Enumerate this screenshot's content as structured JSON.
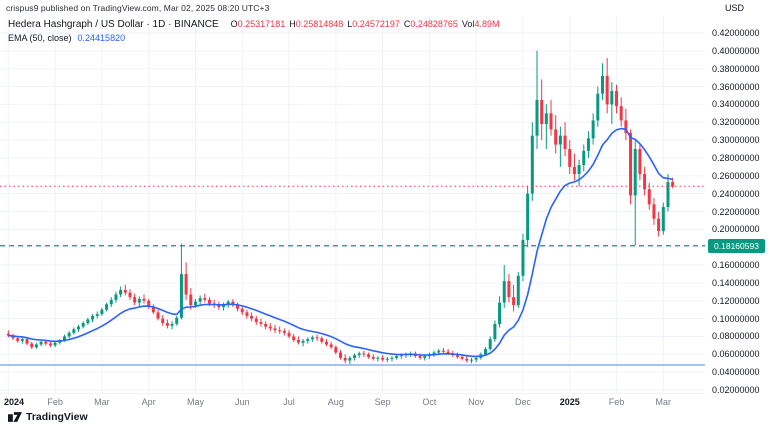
{
  "publish_bar": {
    "text": "crispus9 published on TradingView.com, Mar 02, 2025 08:20 UTC+3"
  },
  "legend": {
    "symbol": "Hedera Hashgraph / US Dollar · 1D · BINANCE",
    "ohlc": [
      {
        "label": "O",
        "value": "0.25317181"
      },
      {
        "label": "H",
        "value": "0.25814848"
      },
      {
        "label": "L",
        "value": "0.24572197"
      },
      {
        "label": "C",
        "value": "0.24828765"
      },
      {
        "label": "Vol",
        "value": "4.89M"
      }
    ],
    "ema": {
      "label": "EMA (50, close)",
      "value": "0.24415820"
    }
  },
  "right_axis": {
    "currency": "USD",
    "ticks": [
      "0.42000000",
      "0.40000000",
      "0.38000000",
      "0.36000000",
      "0.34000000",
      "0.32000000",
      "0.30000000",
      "0.28000000",
      "0.26000000",
      "0.24000000",
      "0.22000000",
      "0.20000000",
      "0.18000000",
      "0.16000000",
      "0.14000000",
      "0.12000000",
      "0.10000000",
      "0.08000000",
      "0.06000000",
      "0.04000000",
      "0.02000000"
    ],
    "level_badge": {
      "value": "0.18160593",
      "color": "#089981"
    }
  },
  "logo": {
    "text": "TradingView"
  },
  "colors": {
    "up": "#089981",
    "down": "#f23645",
    "ema_line": "#2962ff",
    "level_dashed": "#089981",
    "last_price": "#f23645",
    "support_line": "#4a86f7",
    "grid": "#f0f3fa",
    "text_dark": "#131722",
    "text_gray": "#787b86"
  },
  "chart_data": {
    "type": "candlestick",
    "title": "Hedera Hashgraph / US Dollar, 1D, BINANCE",
    "interval": "1D",
    "y_axis": {
      "min": 0.02,
      "max": 0.42,
      "tick_step": 0.02
    },
    "x_labels": [
      {
        "text": "2024",
        "i": 0,
        "major": true
      },
      {
        "text": "Feb",
        "i": 10
      },
      {
        "text": "Mar",
        "i": 20
      },
      {
        "text": "Apr",
        "i": 30
      },
      {
        "text": "May",
        "i": 40
      },
      {
        "text": "Jun",
        "i": 50
      },
      {
        "text": "Jul",
        "i": 60
      },
      {
        "text": "Aug",
        "i": 70
      },
      {
        "text": "Sep",
        "i": 80
      },
      {
        "text": "Oct",
        "i": 90
      },
      {
        "text": "Nov",
        "i": 100
      },
      {
        "text": "Dec",
        "i": 110
      },
      {
        "text": "2025",
        "i": 120,
        "major": true
      },
      {
        "text": "Feb",
        "i": 130
      },
      {
        "text": "Mar",
        "i": 140
      }
    ],
    "candles": [
      [
        0.083,
        0.087,
        0.079,
        0.081
      ],
      [
        0.081,
        0.083,
        0.076,
        0.078
      ],
      [
        0.078,
        0.08,
        0.073,
        0.075
      ],
      [
        0.075,
        0.079,
        0.072,
        0.077
      ],
      [
        0.077,
        0.078,
        0.07,
        0.072
      ],
      [
        0.072,
        0.074,
        0.066,
        0.068
      ],
      [
        0.068,
        0.073,
        0.066,
        0.071
      ],
      [
        0.071,
        0.075,
        0.069,
        0.074
      ],
      [
        0.074,
        0.076,
        0.07,
        0.072
      ],
      [
        0.072,
        0.074,
        0.068,
        0.07
      ],
      [
        0.07,
        0.074,
        0.068,
        0.073
      ],
      [
        0.073,
        0.077,
        0.071,
        0.076
      ],
      [
        0.076,
        0.082,
        0.074,
        0.08
      ],
      [
        0.08,
        0.086,
        0.078,
        0.084
      ],
      [
        0.084,
        0.09,
        0.082,
        0.088
      ],
      [
        0.088,
        0.093,
        0.085,
        0.091
      ],
      [
        0.091,
        0.097,
        0.089,
        0.095
      ],
      [
        0.095,
        0.101,
        0.093,
        0.099
      ],
      [
        0.099,
        0.105,
        0.096,
        0.103
      ],
      [
        0.103,
        0.108,
        0.1,
        0.105
      ],
      [
        0.105,
        0.112,
        0.103,
        0.11
      ],
      [
        0.11,
        0.118,
        0.108,
        0.116
      ],
      [
        0.116,
        0.124,
        0.113,
        0.121
      ],
      [
        0.121,
        0.13,
        0.118,
        0.127
      ],
      [
        0.127,
        0.136,
        0.124,
        0.132
      ],
      [
        0.132,
        0.138,
        0.126,
        0.129
      ],
      [
        0.129,
        0.133,
        0.121,
        0.124
      ],
      [
        0.124,
        0.128,
        0.115,
        0.118
      ],
      [
        0.118,
        0.125,
        0.114,
        0.122
      ],
      [
        0.122,
        0.127,
        0.117,
        0.12
      ],
      [
        0.12,
        0.122,
        0.111,
        0.113
      ],
      [
        0.113,
        0.116,
        0.105,
        0.107
      ],
      [
        0.107,
        0.11,
        0.098,
        0.1
      ],
      [
        0.1,
        0.104,
        0.092,
        0.095
      ],
      [
        0.095,
        0.099,
        0.089,
        0.092
      ],
      [
        0.092,
        0.097,
        0.088,
        0.094
      ],
      [
        0.094,
        0.103,
        0.092,
        0.101
      ],
      [
        0.101,
        0.184,
        0.099,
        0.15
      ],
      [
        0.15,
        0.163,
        0.121,
        0.127
      ],
      [
        0.127,
        0.134,
        0.11,
        0.115
      ],
      [
        0.115,
        0.122,
        0.112,
        0.119
      ],
      [
        0.119,
        0.126,
        0.116,
        0.123
      ],
      [
        0.123,
        0.128,
        0.118,
        0.121
      ],
      [
        0.121,
        0.124,
        0.114,
        0.117
      ],
      [
        0.117,
        0.121,
        0.112,
        0.115
      ],
      [
        0.115,
        0.119,
        0.11,
        0.113
      ],
      [
        0.113,
        0.118,
        0.109,
        0.116
      ],
      [
        0.116,
        0.121,
        0.112,
        0.119
      ],
      [
        0.119,
        0.122,
        0.113,
        0.116
      ],
      [
        0.116,
        0.118,
        0.108,
        0.111
      ],
      [
        0.111,
        0.114,
        0.104,
        0.107
      ],
      [
        0.107,
        0.11,
        0.1,
        0.103
      ],
      [
        0.103,
        0.107,
        0.097,
        0.1
      ],
      [
        0.1,
        0.103,
        0.093,
        0.096
      ],
      [
        0.096,
        0.1,
        0.091,
        0.094
      ],
      [
        0.094,
        0.097,
        0.088,
        0.091
      ],
      [
        0.091,
        0.095,
        0.086,
        0.089
      ],
      [
        0.089,
        0.093,
        0.084,
        0.087
      ],
      [
        0.087,
        0.091,
        0.083,
        0.086
      ],
      [
        0.086,
        0.089,
        0.081,
        0.084
      ],
      [
        0.084,
        0.087,
        0.078,
        0.08
      ],
      [
        0.08,
        0.083,
        0.074,
        0.076
      ],
      [
        0.076,
        0.08,
        0.071,
        0.073
      ],
      [
        0.073,
        0.077,
        0.069,
        0.075
      ],
      [
        0.075,
        0.079,
        0.072,
        0.077
      ],
      [
        0.077,
        0.081,
        0.074,
        0.079
      ],
      [
        0.079,
        0.082,
        0.075,
        0.078
      ],
      [
        0.078,
        0.08,
        0.072,
        0.074
      ],
      [
        0.074,
        0.077,
        0.069,
        0.071
      ],
      [
        0.071,
        0.074,
        0.066,
        0.068
      ],
      [
        0.068,
        0.07,
        0.06,
        0.062
      ],
      [
        0.062,
        0.065,
        0.054,
        0.056
      ],
      [
        0.056,
        0.06,
        0.05,
        0.053
      ],
      [
        0.053,
        0.058,
        0.049,
        0.056
      ],
      [
        0.056,
        0.061,
        0.053,
        0.059
      ],
      [
        0.059,
        0.063,
        0.056,
        0.061
      ],
      [
        0.061,
        0.064,
        0.057,
        0.06
      ],
      [
        0.06,
        0.062,
        0.055,
        0.057
      ],
      [
        0.057,
        0.06,
        0.053,
        0.055
      ],
      [
        0.055,
        0.058,
        0.052,
        0.056
      ],
      [
        0.056,
        0.059,
        0.052,
        0.054
      ],
      [
        0.054,
        0.057,
        0.051,
        0.055
      ],
      [
        0.055,
        0.058,
        0.052,
        0.056
      ],
      [
        0.056,
        0.06,
        0.054,
        0.058
      ],
      [
        0.058,
        0.061,
        0.055,
        0.059
      ],
      [
        0.059,
        0.062,
        0.056,
        0.06
      ],
      [
        0.06,
        0.063,
        0.057,
        0.061
      ],
      [
        0.061,
        0.063,
        0.056,
        0.058
      ],
      [
        0.058,
        0.061,
        0.054,
        0.056
      ],
      [
        0.056,
        0.06,
        0.053,
        0.058
      ],
      [
        0.058,
        0.062,
        0.055,
        0.06
      ],
      [
        0.06,
        0.064,
        0.057,
        0.062
      ],
      [
        0.062,
        0.066,
        0.059,
        0.064
      ],
      [
        0.064,
        0.067,
        0.06,
        0.063
      ],
      [
        0.063,
        0.066,
        0.059,
        0.061
      ],
      [
        0.061,
        0.064,
        0.057,
        0.059
      ],
      [
        0.059,
        0.062,
        0.055,
        0.057
      ],
      [
        0.057,
        0.06,
        0.053,
        0.055
      ],
      [
        0.055,
        0.058,
        0.051,
        0.053
      ],
      [
        0.053,
        0.056,
        0.05,
        0.054
      ],
      [
        0.054,
        0.058,
        0.051,
        0.056
      ],
      [
        0.056,
        0.062,
        0.054,
        0.06
      ],
      [
        0.06,
        0.068,
        0.058,
        0.066
      ],
      [
        0.066,
        0.08,
        0.064,
        0.077
      ],
      [
        0.077,
        0.098,
        0.074,
        0.094
      ],
      [
        0.094,
        0.125,
        0.09,
        0.118
      ],
      [
        0.118,
        0.16,
        0.112,
        0.142
      ],
      [
        0.142,
        0.15,
        0.118,
        0.124
      ],
      [
        0.124,
        0.138,
        0.108,
        0.115
      ],
      [
        0.115,
        0.152,
        0.112,
        0.148
      ],
      [
        0.148,
        0.195,
        0.142,
        0.188
      ],
      [
        0.188,
        0.248,
        0.18,
        0.24
      ],
      [
        0.24,
        0.32,
        0.232,
        0.305
      ],
      [
        0.305,
        0.4,
        0.29,
        0.345
      ],
      [
        0.345,
        0.368,
        0.3,
        0.318
      ],
      [
        0.318,
        0.34,
        0.29,
        0.33
      ],
      [
        0.33,
        0.345,
        0.305,
        0.312
      ],
      [
        0.312,
        0.328,
        0.285,
        0.295
      ],
      [
        0.295,
        0.315,
        0.27,
        0.305
      ],
      [
        0.305,
        0.32,
        0.282,
        0.29
      ],
      [
        0.29,
        0.3,
        0.262,
        0.27
      ],
      [
        0.27,
        0.285,
        0.255,
        0.262
      ],
      [
        0.262,
        0.278,
        0.248,
        0.272
      ],
      [
        0.272,
        0.295,
        0.265,
        0.288
      ],
      [
        0.288,
        0.31,
        0.28,
        0.302
      ],
      [
        0.302,
        0.33,
        0.295,
        0.322
      ],
      [
        0.322,
        0.36,
        0.315,
        0.352
      ],
      [
        0.352,
        0.386,
        0.345,
        0.372
      ],
      [
        0.372,
        0.392,
        0.33,
        0.34
      ],
      [
        0.34,
        0.365,
        0.318,
        0.355
      ],
      [
        0.355,
        0.362,
        0.33,
        0.338
      ],
      [
        0.338,
        0.348,
        0.315,
        0.322
      ],
      [
        0.322,
        0.335,
        0.3,
        0.308
      ],
      [
        0.308,
        0.312,
        0.228,
        0.238
      ],
      [
        0.238,
        0.3,
        0.182,
        0.29
      ],
      [
        0.29,
        0.296,
        0.255,
        0.262
      ],
      [
        0.262,
        0.27,
        0.238,
        0.245
      ],
      [
        0.245,
        0.252,
        0.222,
        0.228
      ],
      [
        0.228,
        0.235,
        0.205,
        0.212
      ],
      [
        0.212,
        0.22,
        0.192,
        0.198
      ],
      [
        0.198,
        0.23,
        0.194,
        0.225
      ],
      [
        0.225,
        0.262,
        0.22,
        0.253
      ],
      [
        0.253,
        0.258,
        0.246,
        0.248
      ]
    ],
    "overlays": {
      "ema": {
        "period": 50,
        "source": "close",
        "color": "#2962ff",
        "last_value": 0.2441582
      },
      "levels": [
        {
          "price": 0.18160593,
          "style": "dashed",
          "color": "#089981"
        },
        {
          "price": 0.048,
          "style": "solid",
          "color": "#4a86f7"
        }
      ],
      "last_price_line": {
        "price": 0.24828765,
        "style": "dotted",
        "color": "#f23645"
      }
    }
  }
}
